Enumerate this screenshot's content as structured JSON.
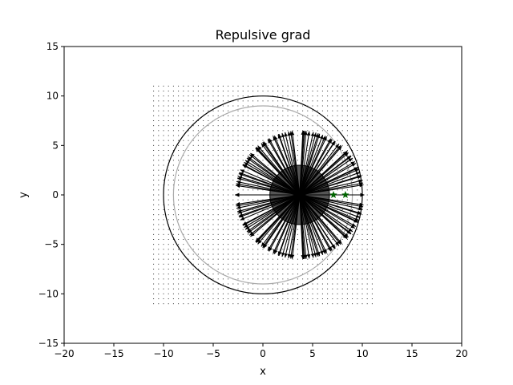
{
  "chart_data": {
    "type": "quiver",
    "title": "Repulsive grad",
    "xlabel": "x",
    "ylabel": "y",
    "xlim": [
      -20,
      20
    ],
    "ylim": [
      -15,
      15
    ],
    "xticks": [
      -20,
      -15,
      -10,
      -5,
      0,
      5,
      10,
      15,
      20
    ],
    "yticks": [
      -15,
      -10,
      -5,
      0,
      5,
      10,
      15
    ],
    "xtick_labels": [
      "−20",
      "−15",
      "−10",
      "−5",
      "0",
      "5",
      "10",
      "15",
      "20"
    ],
    "ytick_labels": [
      "−15",
      "−10",
      "−5",
      "0",
      "5",
      "10",
      "15"
    ],
    "grid": false,
    "sample_grid": {
      "xmin": -11,
      "xmax": 11,
      "ymin": -11,
      "ymax": 11,
      "step": 0.5
    },
    "circles": [
      {
        "name": "outer-boundary",
        "cx": 0,
        "cy": 0,
        "r": 10,
        "color": "#000000"
      },
      {
        "name": "inner-boundary",
        "cx": 0,
        "cy": 0,
        "r": 9,
        "color": "#aaaaaa"
      }
    ],
    "obstacle": {
      "cx": 3.7,
      "cy": 0,
      "r": 3,
      "color": "#555555"
    },
    "arrow_field": {
      "cx": 3.7,
      "cy": 0,
      "inner_r": 0.3,
      "outer_r": 7,
      "ring_step": 1,
      "max_arrow_len": 6.5
    },
    "markers": [
      {
        "x": 7.1,
        "y": 0,
        "symbol": "star",
        "color": "#006400"
      },
      {
        "x": 8.3,
        "y": 0,
        "symbol": "star",
        "color": "#006400"
      }
    ]
  }
}
